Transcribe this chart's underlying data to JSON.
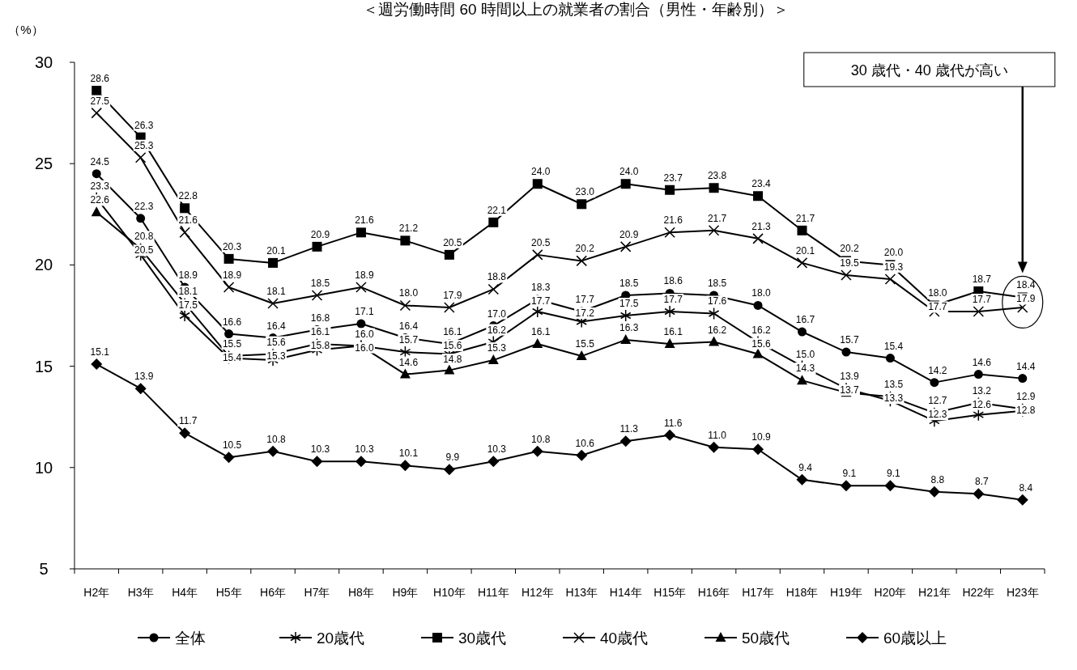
{
  "chart_data": {
    "type": "line",
    "title": "＜週労働時間 60 時間以上の就業者の割合（男性・年齢別）＞",
    "ylabel": "（%）",
    "categories": [
      "H2年",
      "H3年",
      "H4年",
      "H5年",
      "H6年",
      "H7年",
      "H8年",
      "H9年",
      "H10年",
      "H11年",
      "H12年",
      "H13年",
      "H14年",
      "H15年",
      "H16年",
      "H17年",
      "H18年",
      "H19年",
      "H20年",
      "H21年",
      "H22年",
      "H23年"
    ],
    "series": [
      {
        "name": "全体",
        "color": "#000000",
        "marker": "circle",
        "values": [
          24.5,
          22.3,
          18.9,
          16.6,
          16.4,
          16.8,
          17.1,
          16.4,
          16.1,
          17.0,
          18.3,
          17.7,
          18.5,
          18.6,
          18.5,
          18.0,
          16.7,
          15.7,
          15.4,
          14.2,
          14.6,
          14.4
        ],
        "value_labels": [
          "24.5",
          "22.3",
          "18.9",
          "16.6",
          "16.4",
          "16.8",
          "17.1",
          "16.4",
          "16.1",
          "17.0",
          "18.3",
          "17.7",
          "18.5",
          "18.6",
          "18.5",
          "18.0",
          "16.7",
          "15.7",
          "15.4",
          "14.2",
          "14.6",
          "14.4"
        ]
      },
      {
        "name": "20歳代",
        "color": "#000000",
        "marker": "cross",
        "values": [
          23.3,
          20.5,
          17.5,
          15.4,
          15.3,
          15.8,
          16.0,
          15.7,
          15.6,
          16.2,
          17.7,
          17.2,
          17.5,
          17.7,
          17.6,
          16.2,
          15.0,
          13.9,
          13.3,
          12.3,
          12.6,
          12.8
        ],
        "value_labels": [
          "23.3",
          "20.5",
          "17.5",
          "15.4",
          "15.3",
          "15.8",
          "16.0",
          "15.7",
          "15.6",
          "16.2",
          "17.7",
          "17.2",
          "17.5",
          "17.7",
          "17.6",
          "16.2",
          "15.0",
          "13.9",
          "13.3",
          "12.3",
          "12.6",
          "12.8"
        ]
      },
      {
        "name": "30歳代",
        "color": "#000000",
        "marker": "square",
        "values": [
          28.6,
          26.3,
          22.8,
          20.3,
          20.1,
          20.9,
          21.6,
          21.2,
          20.5,
          22.1,
          24.0,
          23.0,
          24.0,
          23.7,
          23.8,
          23.4,
          21.7,
          20.2,
          20.0,
          18.0,
          18.7,
          18.4
        ],
        "value_labels": [
          "28.6",
          "26.3",
          "22.8",
          "20.3",
          "20.1",
          "20.9",
          "21.6",
          "21.2",
          "20.5",
          "22.1",
          "24.0",
          "23.0",
          "24.0",
          "23.7",
          "23.8",
          "23.4",
          "21.7",
          "20.2",
          "20.0",
          "18.0",
          "18.7",
          "18.4"
        ]
      },
      {
        "name": "40歳代",
        "color": "#000000",
        "marker": "cross",
        "values": [
          27.5,
          25.3,
          21.6,
          18.9,
          18.1,
          18.5,
          18.9,
          18.0,
          17.9,
          18.8,
          20.5,
          20.2,
          20.9,
          21.6,
          21.7,
          21.3,
          20.1,
          19.5,
          19.3,
          17.7,
          17.7,
          17.9
        ],
        "value_labels": [
          "27.5",
          "25.3",
          "21.6",
          "18.9",
          "18.1",
          "18.5",
          "18.9",
          "18.0",
          "17.9",
          "18.8",
          "20.5",
          "20.2",
          "20.9",
          "21.6",
          "21.7",
          "21.3",
          "20.1",
          "19.5",
          "19.3",
          "17.7",
          "17.7",
          "17.9"
        ]
      },
      {
        "name": "50歳代",
        "color": "#000000",
        "marker": "triangle",
        "values": [
          22.6,
          20.8,
          18.1,
          15.5,
          15.6,
          16.1,
          16.0,
          14.6,
          14.8,
          15.3,
          16.1,
          15.5,
          16.3,
          16.1,
          16.2,
          15.6,
          14.3,
          13.7,
          13.5,
          12.7,
          13.2,
          12.9
        ],
        "value_labels": [
          "22.6",
          "20.8",
          "18.1",
          "15.5",
          "15.6",
          "16.1",
          "16.0",
          "14.6",
          "14.8",
          "15.3",
          "16.1",
          "15.5",
          "16.3",
          "16.1",
          "16.2",
          "15.6",
          "14.3",
          "13.7",
          "13.5",
          "12.7",
          "13.2",
          "12.9"
        ]
      },
      {
        "name": "60歳以上",
        "color": "#000000",
        "marker": "diamond",
        "values": [
          15.1,
          13.9,
          11.7,
          10.5,
          10.8,
          10.3,
          10.3,
          10.1,
          9.9,
          10.3,
          10.8,
          10.6,
          11.3,
          11.6,
          11.0,
          10.9,
          9.4,
          9.1,
          9.1,
          8.8,
          8.7,
          8.4
        ],
        "value_labels": [
          "15.1",
          "13.9",
          "11.7",
          "10.5",
          "10.8",
          "10.3",
          "10.3",
          "10.1",
          "9.9",
          "10.3",
          "10.8",
          "10.6",
          "11.3",
          "11.6",
          "11.0",
          "10.9",
          "9.4",
          "9.1",
          "9.1",
          "8.8",
          "8.7",
          "8.4"
        ]
      }
    ],
    "ylim": [
      5,
      30
    ],
    "yticks": [
      5,
      10,
      15,
      20,
      25,
      30
    ],
    "grid": false,
    "legend": "bottom",
    "line_style": "solid",
    "annotations": [
      "30 歳代・40 歳代が高い"
    ]
  }
}
